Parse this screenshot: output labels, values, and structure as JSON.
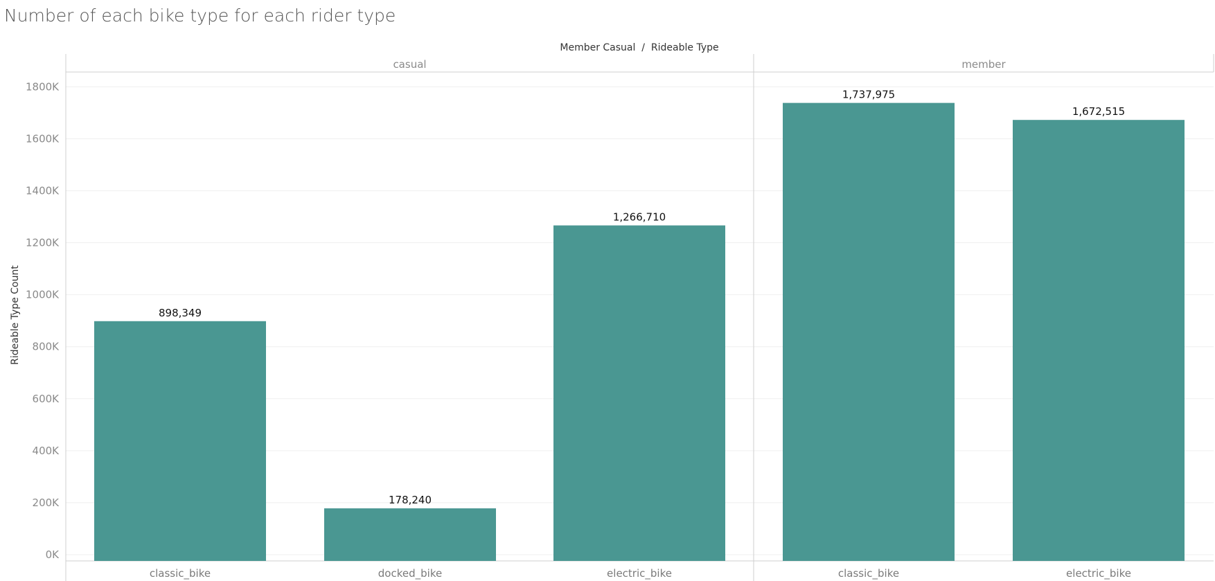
{
  "chart_data": {
    "type": "bar",
    "title": "Number of each bike type for each rider type",
    "header": "Member Casual  /  Rideable Type",
    "ylabel": "Rideable Type Count",
    "xlabel": "",
    "ylim": [
      0,
      1900000
    ],
    "yticks": [
      0,
      200000,
      400000,
      600000,
      800000,
      1000000,
      1200000,
      1400000,
      1600000,
      1800000
    ],
    "ytick_labels": [
      "0K",
      "200K",
      "400K",
      "600K",
      "800K",
      "1000K",
      "1200K",
      "1400K",
      "1600K",
      "1800K"
    ],
    "grid": true,
    "bar_color": "#4a9792",
    "panels": [
      {
        "name": "casual",
        "categories": [
          "classic_bike",
          "docked_bike",
          "electric_bike"
        ],
        "values": [
          898349,
          178240,
          1266710
        ],
        "value_labels": [
          "898,349",
          "178,240",
          "1,266,710"
        ]
      },
      {
        "name": "member",
        "categories": [
          "classic_bike",
          "electric_bike"
        ],
        "values": [
          1737975,
          1672515
        ],
        "value_labels": [
          "1,737,975",
          "1,672,515"
        ]
      }
    ]
  }
}
